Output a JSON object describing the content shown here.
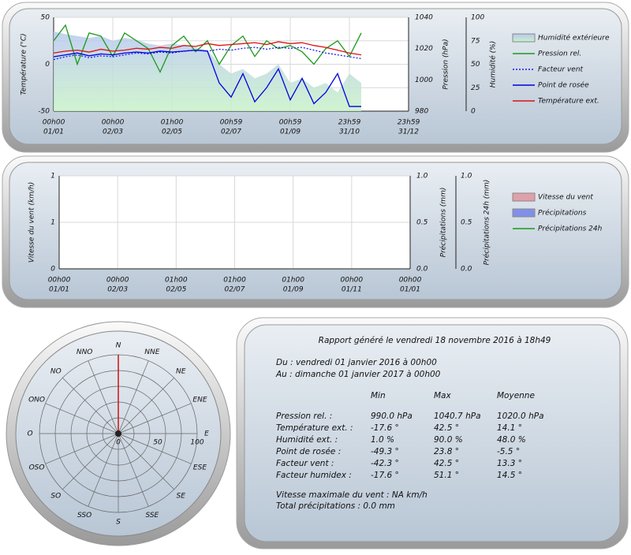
{
  "chart_data": [
    {
      "type": "line",
      "x": [
        0,
        0.2,
        0.4,
        0.6,
        0.8,
        1,
        1.2,
        1.4,
        1.6,
        1.8,
        2,
        2.2,
        2.4,
        2.6,
        2.8,
        3,
        3.2,
        3.4,
        3.6,
        3.8,
        4,
        4.2,
        4.4,
        4.6,
        4.8,
        5,
        5.2
      ],
      "xlim": [
        0,
        6
      ],
      "xticks": [
        {
          "value": 0,
          "label": "00h00",
          "date": "01/01"
        },
        {
          "value": 1,
          "label": "00h00",
          "date": "02/03"
        },
        {
          "value": 2,
          "label": "01h00",
          "date": "02/05"
        },
        {
          "value": 3,
          "label": "00h59",
          "date": "02/07"
        },
        {
          "value": 4,
          "label": "00h59",
          "date": "01/09"
        },
        {
          "value": 5,
          "label": "23h59",
          "date": "31/10"
        },
        {
          "value": 6,
          "label": "23h59",
          "date": "31/12"
        }
      ],
      "ylabel": "Température (°C)",
      "ylim": [
        -50,
        50
      ],
      "yticks": [
        -50,
        0,
        50
      ],
      "y2label": "Pression (hPa)",
      "y2lim": [
        980,
        1040
      ],
      "y2ticks": [
        980,
        1000,
        1020,
        1040
      ],
      "y3label": "Humidité (%)",
      "y3lim": [
        0,
        100
      ],
      "y3ticks": [
        0,
        25,
        50,
        75,
        100
      ],
      "grid": "y3",
      "series": [
        {
          "name": "Humidité extérieure",
          "style": "area",
          "color": "#b9c8f0",
          "axis": "y3",
          "values": [
            85,
            82,
            80,
            78,
            80,
            75,
            78,
            76,
            72,
            70,
            72,
            70,
            68,
            65,
            50,
            40,
            45,
            35,
            40,
            50,
            30,
            35,
            25,
            30,
            20,
            40,
            30
          ]
        },
        {
          "name": "Pression rel.",
          "style": "line",
          "color": "#1a9a1a",
          "axis": "y2",
          "values": [
            1025,
            1035,
            1010,
            1030,
            1028,
            1015,
            1030,
            1025,
            1020,
            1005,
            1022,
            1028,
            1018,
            1025,
            1010,
            1022,
            1028,
            1015,
            1025,
            1020,
            1022,
            1018,
            1010,
            1020,
            1025,
            1015,
            1030
          ]
        },
        {
          "name": "Facteur vent",
          "style": "dotted",
          "color": "#1a1aee",
          "axis": "y",
          "values": [
            5,
            8,
            10,
            7,
            9,
            8,
            10,
            12,
            11,
            13,
            12,
            14,
            15,
            14,
            16,
            15,
            17,
            18,
            16,
            18,
            17,
            18,
            15,
            12,
            10,
            8,
            6
          ]
        },
        {
          "name": "Point de rosée",
          "style": "line",
          "color": "#0000dd",
          "axis": "y",
          "values": [
            8,
            10,
            12,
            9,
            11,
            10,
            12,
            13,
            12,
            14,
            13,
            14,
            15,
            14,
            -20,
            -35,
            -10,
            -40,
            -25,
            -5,
            -38,
            -15,
            -42,
            -30,
            -10,
            -45,
            -45
          ]
        },
        {
          "name": "Température ext.",
          "style": "line",
          "color": "#dd1111",
          "axis": "y",
          "values": [
            12,
            14,
            15,
            13,
            16,
            14,
            15,
            17,
            16,
            18,
            17,
            20,
            19,
            22,
            20,
            21,
            22,
            23,
            21,
            24,
            22,
            23,
            20,
            18,
            15,
            12,
            10
          ]
        }
      ]
    },
    {
      "type": "line",
      "x": [],
      "xlim": [
        0,
        6
      ],
      "xticks": [
        {
          "value": 0,
          "label": "00h00",
          "date": "01/01"
        },
        {
          "value": 1,
          "label": "00h00",
          "date": "02/03"
        },
        {
          "value": 2,
          "label": "01h00",
          "date": "02/05"
        },
        {
          "value": 3,
          "label": "01h00",
          "date": "02/07"
        },
        {
          "value": 4,
          "label": "01h00",
          "date": "01/09"
        },
        {
          "value": 5,
          "label": "00h00",
          "date": "01/11"
        },
        {
          "value": 6,
          "label": "00h00",
          "date": "01/01"
        }
      ],
      "ylabel": "Vitesse du vent (km/h)",
      "ylim": [
        0,
        1
      ],
      "yticks": [
        0,
        {
          "value": 0.5,
          "label": "1"
        },
        1
      ],
      "y2label": "Précipitations (mm)",
      "y2lim": [
        0,
        1
      ],
      "y2ticks": [
        {
          "value": 0,
          "label": "0.0"
        },
        0.5,
        {
          "value": 1,
          "label": "1.0"
        }
      ],
      "y3label": "Précipitations 24h (mm)",
      "y3lim": [
        0,
        1
      ],
      "y3ticks": [
        {
          "value": 0,
          "label": "0.0"
        },
        0.5,
        {
          "value": 1,
          "label": "1.0"
        }
      ],
      "grid": "y3",
      "series": [
        {
          "name": "Vitesse du vent",
          "style": "bar",
          "color": "#e0a0aa",
          "axis": "y",
          "values": []
        },
        {
          "name": "Précipitations",
          "style": "bar",
          "color": "#8090e8",
          "axis": "y2",
          "values": []
        },
        {
          "name": "Précipitations 24h",
          "style": "line",
          "color": "#1a9a1a",
          "axis": "y3",
          "values": []
        }
      ]
    },
    {
      "type": "windrose",
      "categories": [
        "N",
        "NNE",
        "NE",
        "ENE",
        "E",
        "ESE",
        "SE",
        "SSE",
        "S",
        "SSO",
        "SO",
        "OSO",
        "O",
        "ONO",
        "NO",
        "NNO"
      ],
      "values": [
        100,
        0,
        0,
        0,
        0,
        0,
        0,
        0,
        0,
        0,
        0,
        0,
        0,
        0,
        0,
        0
      ],
      "color": "#cc1111",
      "rlim": [
        0,
        100
      ],
      "rticks": [
        0,
        50,
        100
      ]
    }
  ],
  "report": {
    "title": "Rapport généré le vendredi 18 novembre 2016 à 18h49",
    "from": "Du : vendredi 01 janvier 2016 à 00h00",
    "to": "Au : dimanche 01 janvier 2017 à 00h00",
    "columns": [
      "Min",
      "Max",
      "Moyenne"
    ],
    "rows": [
      [
        "Pression rel. :",
        "990.0 hPa",
        "1040.7 hPa",
        "1020.0 hPa"
      ],
      [
        "Température ext. :",
        "-17.6 °",
        "42.5 °",
        "14.1 °"
      ],
      [
        "Humidité ext. :",
        "1.0 %",
        "90.0 %",
        "48.0 %"
      ],
      [
        "Point de rosée :",
        "-49.3 °",
        "23.8 °",
        "-5.5 °"
      ],
      [
        "Facteur vent :",
        "-42.3 °",
        "42.5 °",
        "13.3 °"
      ],
      [
        "Facteur humidex :",
        "-17.6 °",
        "51.1 °",
        "14.5 °"
      ]
    ],
    "wind": "Vitesse maximale du vent : NA km/h",
    "rain": "Total précipitations : 0.0 mm"
  }
}
